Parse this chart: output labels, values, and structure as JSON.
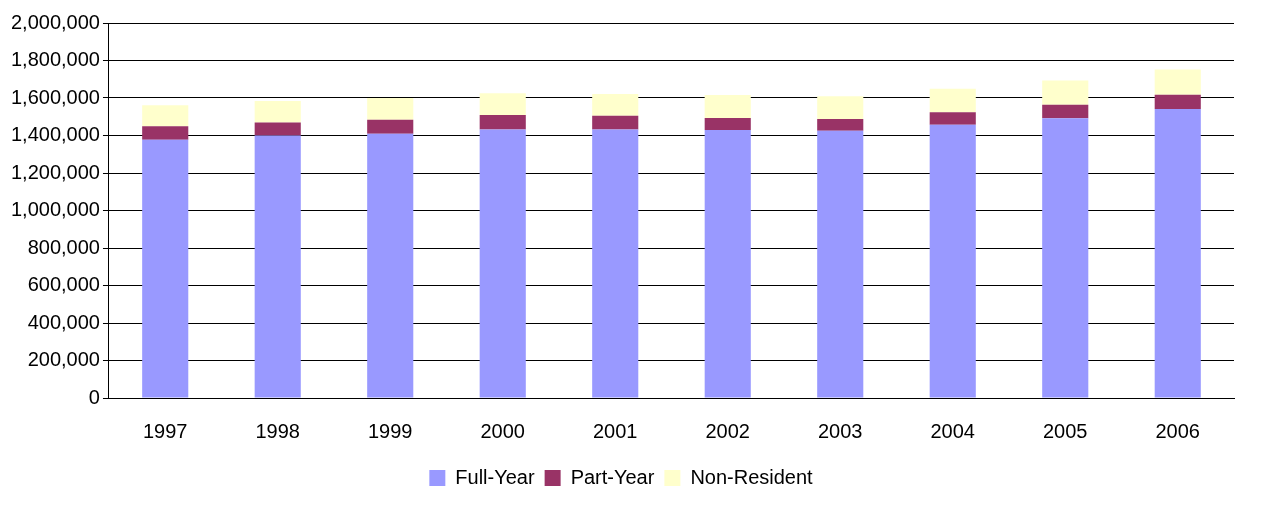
{
  "chart_data": {
    "type": "bar",
    "stacked": true,
    "categories": [
      "1997",
      "1998",
      "1999",
      "2000",
      "2001",
      "2002",
      "2003",
      "2004",
      "2005",
      "2006"
    ],
    "series": [
      {
        "name": "Full-Year",
        "color": "#9999ff",
        "values": [
          1378000,
          1400000,
          1410000,
          1432000,
          1432000,
          1430000,
          1426000,
          1458000,
          1492000,
          1542000
        ]
      },
      {
        "name": "Part-Year",
        "color": "#993366",
        "values": [
          72000,
          70000,
          74000,
          78000,
          74000,
          64000,
          62000,
          66000,
          72000,
          76000
        ]
      },
      {
        "name": "Non-Resident",
        "color": "#ffffcc",
        "values": [
          112000,
          114000,
          116000,
          116000,
          116000,
          122000,
          122000,
          126000,
          130000,
          134000
        ]
      }
    ],
    "ylim": [
      0,
      2000000
    ],
    "yticks": [
      0,
      {
        "value": 200000,
        "label": "200,000"
      },
      {
        "value": 400000,
        "label": "400,000"
      },
      {
        "value": 600000,
        "label": "600,000"
      },
      {
        "value": 800000,
        "label": "800,000"
      },
      {
        "value": 1000000,
        "label": "1,000,000"
      },
      {
        "value": 1200000,
        "label": "1,200,000"
      },
      {
        "value": 1400000,
        "label": "1,400,000"
      },
      {
        "value": 1600000,
        "label": "1,600,000"
      },
      {
        "value": 1800000,
        "label": "1,800,000"
      },
      {
        "value": 2000000,
        "label": "2,000,000"
      }
    ],
    "grid": "y",
    "legend": "bottom"
  }
}
